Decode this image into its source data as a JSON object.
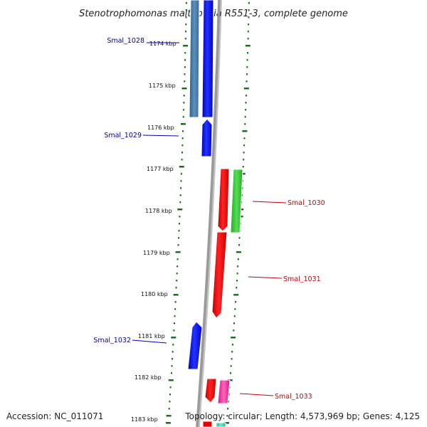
{
  "title": "Stenotrophomonas maltophilia R551-3, complete genome",
  "accession": "Accession: NC_011071",
  "topology": "Topology: circular; Length: 4,573,969 bp; Genes: 4,125",
  "colors": {
    "reverse_strand": "#0000ee",
    "reverse_strand_alt": "#4682b4",
    "forward_strand": "#ee0000",
    "forward_strand_alt_green": "#33cc33",
    "forward_strand_alt_pink": "#ff33aa",
    "forward_strand_alt_teal": "#33ddaa",
    "label_reverse": "#000099",
    "label_forward": "#cc0000",
    "backbone": "#888888",
    "ticks": "#117711"
  },
  "scale": {
    "unit": "kbp",
    "labels": [
      "1174 kbp",
      "1175 kbp",
      "1176 kbp",
      "1177 kbp",
      "1178 kbp",
      "1179 kbp",
      "1180 kbp",
      "1181 kbp",
      "1182 kbp",
      "1183 kbp"
    ]
  },
  "genes": [
    {
      "label": "Smal_1028",
      "strand": "reverse",
      "side": "left"
    },
    {
      "label": "Smal_1029",
      "strand": "reverse",
      "side": "left"
    },
    {
      "label": "Smal_1030",
      "strand": "forward",
      "side": "right"
    },
    {
      "label": "Smal_1031",
      "strand": "forward",
      "side": "right"
    },
    {
      "label": "Smal_1032",
      "strand": "reverse",
      "side": "left"
    },
    {
      "label": "Smal_1033",
      "strand": "forward",
      "side": "right"
    }
  ]
}
